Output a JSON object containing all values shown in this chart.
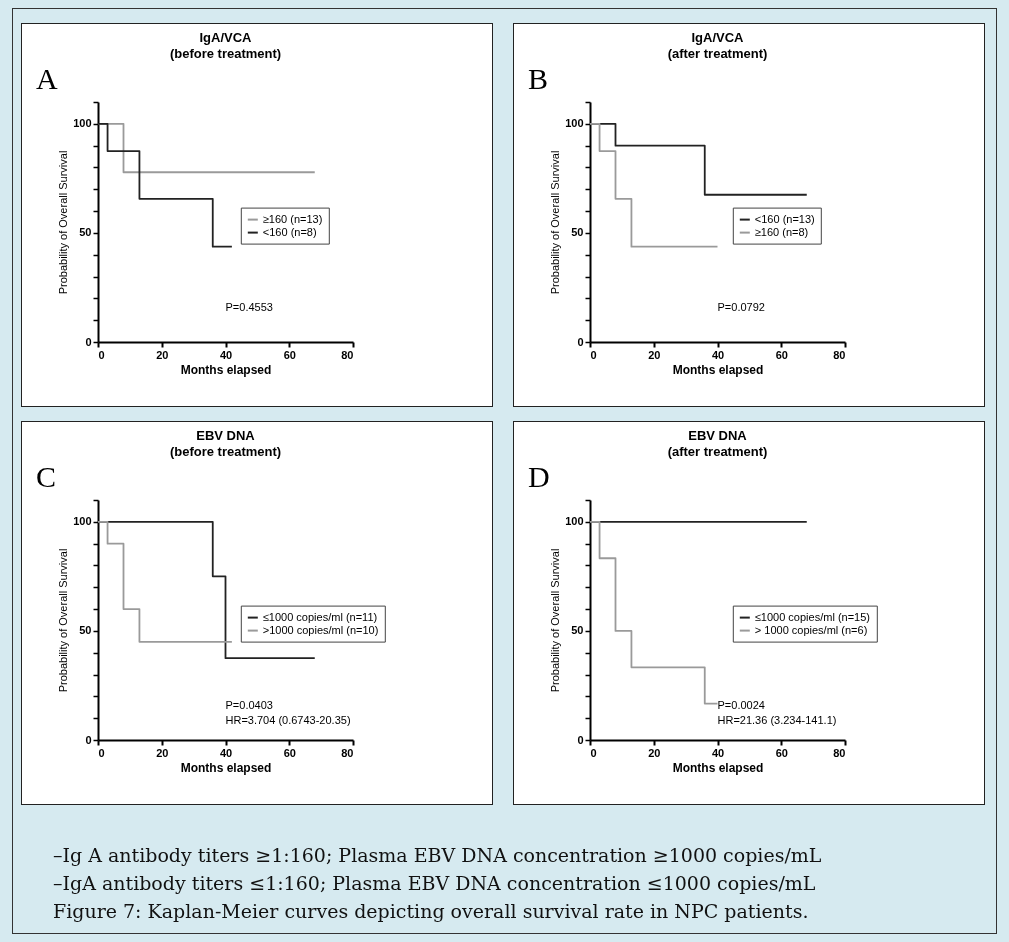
{
  "chart_data": [
    {
      "type": "step",
      "title": "IgA/VCA",
      "subtitle": "(before treatment)",
      "xlabel": "Months elapsed",
      "ylabel": "Probability of Overall Survival",
      "xlim": [
        0,
        80
      ],
      "xticks": [
        0,
        20,
        40,
        60,
        80
      ],
      "ylim": [
        0,
        110
      ],
      "yticks": [
        0,
        {
          "value": 10,
          "label": null
        },
        {
          "value": 20,
          "label": null
        },
        {
          "value": 30,
          "label": null
        },
        {
          "value": 40,
          "label": null
        },
        50,
        {
          "value": 60,
          "label": null
        },
        {
          "value": 70,
          "label": null
        },
        {
          "value": 80,
          "label": null
        },
        {
          "value": 90,
          "label": null
        },
        100,
        {
          "value": 110,
          "label": null
        }
      ],
      "legend": "right",
      "annotations": [
        "A",
        "P=0.4553"
      ],
      "series": [
        {
          "name": "≥160 (n=13)",
          "color": "#9a9a9a",
          "x": [
            0,
            8,
            68
          ],
          "values": [
            100,
            77.8,
            77.8
          ]
        },
        {
          "name": "<160 (n=8)",
          "color": "#222222",
          "x": [
            0,
            3,
            13,
            36,
            42
          ],
          "values": [
            100,
            87.5,
            65.6,
            43.7,
            43.7
          ]
        }
      ]
    },
    {
      "type": "step",
      "title": "IgA/VCA",
      "subtitle": "(after treatment)",
      "xlabel": "Months elapsed",
      "ylabel": "Probability of Overall Survival",
      "xlim": [
        0,
        80
      ],
      "xticks": [
        0,
        20,
        40,
        60,
        80
      ],
      "ylim": [
        0,
        110
      ],
      "yticks": [
        0,
        {
          "value": 10,
          "label": null
        },
        {
          "value": 20,
          "label": null
        },
        {
          "value": 30,
          "label": null
        },
        {
          "value": 40,
          "label": null
        },
        50,
        {
          "value": 60,
          "label": null
        },
        {
          "value": 70,
          "label": null
        },
        {
          "value": 80,
          "label": null
        },
        {
          "value": 90,
          "label": null
        },
        100,
        {
          "value": 110,
          "label": null
        }
      ],
      "legend": "right",
      "annotations": [
        "B",
        "P=0.0792"
      ],
      "series": [
        {
          "name": "<160 (n=13)",
          "color": "#222222",
          "x": [
            0,
            8,
            36,
            68
          ],
          "values": [
            100,
            90,
            67.5,
            67.5
          ]
        },
        {
          "name": "≥160 (n=8)",
          "color": "#9a9a9a",
          "x": [
            0,
            3,
            8,
            13,
            40
          ],
          "values": [
            100,
            87.5,
            65.6,
            43.7,
            43.7
          ]
        }
      ]
    },
    {
      "type": "step",
      "title": "EBV DNA",
      "subtitle": "(before treatment)",
      "xlabel": "Months elapsed",
      "ylabel": "Probability of Overall Survival",
      "xlim": [
        0,
        80
      ],
      "xticks": [
        0,
        20,
        40,
        60,
        80
      ],
      "ylim": [
        0,
        110
      ],
      "yticks": [
        0,
        {
          "value": 10,
          "label": null
        },
        {
          "value": 20,
          "label": null
        },
        {
          "value": 30,
          "label": null
        },
        {
          "value": 40,
          "label": null
        },
        50,
        {
          "value": 60,
          "label": null
        },
        {
          "value": 70,
          "label": null
        },
        {
          "value": 80,
          "label": null
        },
        {
          "value": 90,
          "label": null
        },
        100,
        {
          "value": 110,
          "label": null
        }
      ],
      "legend": "right",
      "annotations": [
        "C",
        "P=0.0403",
        "HR=3.704 (0.6743-20.35)"
      ],
      "series": [
        {
          "name": "≤1000 copies/ml (n=11)",
          "color": "#222222",
          "x": [
            0,
            36,
            40,
            68
          ],
          "values": [
            100,
            75,
            37.5,
            37.5
          ]
        },
        {
          "name": ">1000 copies/ml (n=10)",
          "color": "#9a9a9a",
          "x": [
            0,
            3,
            8,
            13,
            42
          ],
          "values": [
            100,
            90,
            60,
            45,
            45
          ]
        }
      ]
    },
    {
      "type": "step",
      "title": "EBV DNA",
      "subtitle": "(after treatment)",
      "xlabel": "Months elapsed",
      "ylabel": "Probability of Overall Survival",
      "xlim": [
        0,
        80
      ],
      "xticks": [
        0,
        20,
        40,
        60,
        80
      ],
      "ylim": [
        0,
        110
      ],
      "yticks": [
        0,
        {
          "value": 10,
          "label": null
        },
        {
          "value": 20,
          "label": null
        },
        {
          "value": 30,
          "label": null
        },
        {
          "value": 40,
          "label": null
        },
        50,
        {
          "value": 60,
          "label": null
        },
        {
          "value": 70,
          "label": null
        },
        {
          "value": 80,
          "label": null
        },
        {
          "value": 90,
          "label": null
        },
        100,
        {
          "value": 110,
          "label": null
        }
      ],
      "legend": "right",
      "annotations": [
        "D",
        "P=0.0024",
        "HR=21.36 (3.234-141.1)"
      ],
      "series": [
        {
          "name": "≤1000 copies/ml (n=15)",
          "color": "#222222",
          "x": [
            0,
            68
          ],
          "values": [
            100,
            100
          ]
        },
        {
          "name": "> 1000 copies/ml (n=6)",
          "color": "#9a9a9a",
          "x": [
            0,
            3,
            8,
            13,
            36,
            40
          ],
          "values": [
            100,
            83.3,
            50,
            33.3,
            16.7,
            16.7
          ]
        }
      ]
    },
    {
      "type": "other",
      "annotations": [
        "–Ig A antibody titers ≥1:160; Plasma EBV DNA concentration ≥1000 copies/mL",
        "–IgA antibody titers ≤1:160; Plasma EBV DNA concentration ≤1000 copies/mL",
        "Figure 7: Kaplan-Meier curves depicting overall survival rate in NPC patients."
      ]
    }
  ]
}
